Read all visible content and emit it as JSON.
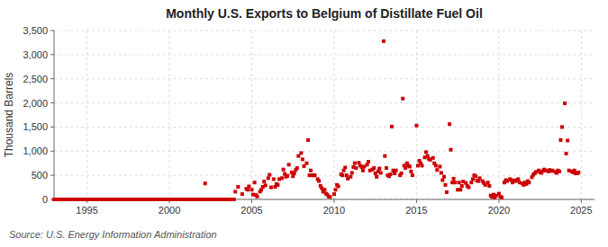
{
  "chart_data": {
    "type": "scatter",
    "title": "Monthly U.S. Exports to Belgium of Distillate Fuel Oil",
    "ylabel": "Thousand Barrels",
    "source": "Source: U.S. Energy Information Administration",
    "color": "#cc0000",
    "marker": "square",
    "grid": true,
    "xlim": [
      1993.0,
      2025.8
    ],
    "ylim": [
      0,
      3500
    ],
    "xticks": [
      1995,
      2000,
      2005,
      2010,
      2015,
      2020,
      2025
    ],
    "yticks": [
      0,
      500,
      {
        "value": 1000,
        "label": "1,000"
      },
      {
        "value": 1500,
        "label": "1,500"
      },
      {
        "value": 2000,
        "label": "2,000"
      },
      {
        "value": 2500,
        "label": "2,500"
      },
      {
        "value": 3000,
        "label": "3,000"
      },
      {
        "value": 3500,
        "label": "3,500"
      }
    ],
    "x": [
      1993.0,
      1993.08,
      1993.17,
      1993.25,
      1993.33,
      1993.42,
      1993.5,
      1993.58,
      1993.67,
      1993.75,
      1993.83,
      1993.92,
      1994.0,
      1994.08,
      1994.17,
      1994.25,
      1994.33,
      1994.42,
      1994.5,
      1994.58,
      1994.67,
      1994.75,
      1994.83,
      1994.92,
      1995.0,
      1995.08,
      1995.17,
      1995.25,
      1995.33,
      1995.42,
      1995.5,
      1995.58,
      1995.67,
      1995.75,
      1995.83,
      1995.92,
      1996.0,
      1996.08,
      1996.17,
      1996.25,
      1996.33,
      1996.42,
      1996.5,
      1996.58,
      1996.67,
      1996.75,
      1996.83,
      1996.92,
      1997.0,
      1997.08,
      1997.17,
      1997.25,
      1997.33,
      1997.42,
      1997.5,
      1997.58,
      1997.67,
      1997.75,
      1997.83,
      1997.92,
      1998.0,
      1998.08,
      1998.17,
      1998.25,
      1998.33,
      1998.42,
      1998.5,
      1998.58,
      1998.67,
      1998.75,
      1998.83,
      1998.92,
      1999.0,
      1999.08,
      1999.17,
      1999.25,
      1999.33,
      1999.42,
      1999.5,
      1999.58,
      1999.67,
      1999.75,
      1999.83,
      1999.92,
      2000.0,
      2000.08,
      2000.17,
      2000.25,
      2000.33,
      2000.42,
      2000.5,
      2000.58,
      2000.67,
      2000.75,
      2000.83,
      2000.92,
      2001.0,
      2001.08,
      2001.17,
      2001.25,
      2001.33,
      2001.42,
      2001.5,
      2001.58,
      2001.67,
      2001.75,
      2001.83,
      2001.92,
      2002.0,
      2002.08,
      2002.17,
      2002.25,
      2002.33,
      2002.42,
      2002.5,
      2002.58,
      2002.67,
      2002.75,
      2002.83,
      2002.92,
      2003.0,
      2003.08,
      2003.17,
      2003.25,
      2003.33,
      2003.42,
      2003.5,
      2003.58,
      2003.67,
      2003.75,
      2003.83,
      2003.92,
      2004.0,
      2004.17,
      2004.42,
      2004.67,
      2004.75,
      2004.83,
      2005.0,
      2005.08,
      2005.17,
      2005.25,
      2005.33,
      2005.5,
      2005.58,
      2005.67,
      2005.75,
      2005.83,
      2006.0,
      2006.08,
      2006.17,
      2006.33,
      2006.42,
      2006.5,
      2006.58,
      2006.67,
      2006.83,
      2006.92,
      2007.0,
      2007.08,
      2007.17,
      2007.25,
      2007.42,
      2007.5,
      2007.58,
      2007.67,
      2007.75,
      2007.83,
      2008.0,
      2008.08,
      2008.17,
      2008.33,
      2008.42,
      2008.5,
      2008.58,
      2008.67,
      2008.75,
      2008.83,
      2009.0,
      2009.08,
      2009.17,
      2009.25,
      2009.33,
      2009.42,
      2009.5,
      2009.58,
      2009.67,
      2009.75,
      2010.0,
      2010.08,
      2010.17,
      2010.25,
      2010.42,
      2010.5,
      2010.58,
      2010.67,
      2010.75,
      2010.83,
      2011.0,
      2011.08,
      2011.17,
      2011.25,
      2011.33,
      2011.5,
      2011.58,
      2011.67,
      2011.75,
      2011.83,
      2012.0,
      2012.08,
      2012.17,
      2012.33,
      2012.42,
      2012.5,
      2012.58,
      2012.67,
      2012.75,
      2012.83,
      2013.0,
      2013.08,
      2013.17,
      2013.25,
      2013.33,
      2013.42,
      2013.5,
      2013.58,
      2013.67,
      2013.75,
      2014.0,
      2014.08,
      2014.17,
      2014.25,
      2014.33,
      2014.42,
      2014.5,
      2014.58,
      2014.67,
      2014.75,
      2015.0,
      2015.08,
      2015.17,
      2015.25,
      2015.33,
      2015.5,
      2015.58,
      2015.67,
      2015.75,
      2015.83,
      2016.0,
      2016.08,
      2016.17,
      2016.25,
      2016.42,
      2016.5,
      2016.58,
      2016.67,
      2016.75,
      2016.83,
      2017.0,
      2017.08,
      2017.17,
      2017.25,
      2017.33,
      2017.5,
      2017.58,
      2017.67,
      2017.75,
      2017.83,
      2018.0,
      2018.08,
      2018.17,
      2018.33,
      2018.42,
      2018.5,
      2018.58,
      2018.67,
      2018.75,
      2018.83,
      2019.0,
      2019.08,
      2019.17,
      2019.33,
      2019.42,
      2019.5,
      2019.58,
      2019.67,
      2019.75,
      2019.83,
      2020.0,
      2020.08,
      2020.17,
      2020.33,
      2020.42,
      2020.5,
      2020.67,
      2020.75,
      2020.83,
      2020.92,
      2021.0,
      2021.08,
      2021.17,
      2021.25,
      2021.42,
      2021.5,
      2021.58,
      2021.67,
      2021.75,
      2021.83,
      2022.0,
      2022.08,
      2022.17,
      2022.25,
      2022.42,
      2022.5,
      2022.58,
      2022.67,
      2022.75,
      2022.83,
      2023.0,
      2023.08,
      2023.17,
      2023.25,
      2023.42,
      2023.5,
      2023.58,
      2023.67,
      2023.75,
      2023.83,
      2024.0,
      2024.08,
      2024.17,
      2024.25,
      2024.42,
      2024.5,
      2024.58,
      2024.67,
      2024.75,
      2024.83
    ],
    "values": [
      0,
      0,
      0,
      0,
      0,
      0,
      0,
      0,
      0,
      0,
      0,
      0,
      0,
      0,
      0,
      0,
      0,
      0,
      0,
      0,
      0,
      0,
      0,
      0,
      0,
      0,
      0,
      0,
      0,
      0,
      0,
      0,
      0,
      0,
      0,
      0,
      0,
      0,
      0,
      0,
      0,
      0,
      0,
      0,
      0,
      0,
      0,
      0,
      0,
      0,
      0,
      0,
      0,
      0,
      0,
      0,
      0,
      0,
      0,
      0,
      0,
      0,
      0,
      0,
      0,
      0,
      0,
      0,
      0,
      0,
      0,
      0,
      0,
      0,
      0,
      0,
      0,
      0,
      0,
      0,
      0,
      0,
      0,
      0,
      0,
      0,
      0,
      0,
      0,
      0,
      0,
      0,
      0,
      0,
      0,
      0,
      0,
      0,
      0,
      0,
      0,
      0,
      0,
      0,
      0,
      0,
      0,
      0,
      0,
      0,
      330,
      0,
      0,
      0,
      0,
      0,
      0,
      0,
      0,
      0,
      0,
      0,
      0,
      0,
      0,
      0,
      0,
      0,
      0,
      0,
      0,
      0,
      160,
      260,
      110,
      220,
      200,
      270,
      200,
      100,
      350,
      90,
      60,
      160,
      200,
      260,
      370,
      290,
      440,
      510,
      250,
      420,
      260,
      320,
      300,
      420,
      440,
      620,
      530,
      470,
      490,
      720,
      560,
      480,
      540,
      610,
      650,
      900,
      960,
      830,
      690,
      750,
      1230,
      500,
      600,
      500,
      500,
      500,
      420,
      380,
      280,
      230,
      160,
      200,
      120,
      100,
      60,
      50,
      110,
      200,
      300,
      270,
      520,
      500,
      600,
      660,
      500,
      430,
      470,
      550,
      670,
      750,
      650,
      760,
      700,
      670,
      600,
      680,
      720,
      780,
      600,
      620,
      650,
      540,
      470,
      580,
      640,
      550,
      3280,
      900,
      650,
      500,
      480,
      520,
      1510,
      600,
      540,
      600,
      500,
      540,
      2090,
      700,
      650,
      750,
      700,
      680,
      580,
      500,
      1530,
      700,
      800,
      750,
      700,
      870,
      980,
      900,
      840,
      820,
      860,
      750,
      700,
      610,
      680,
      550,
      400,
      470,
      300,
      150,
      1560,
      1030,
      350,
      430,
      350,
      200,
      350,
      200,
      280,
      370,
      340,
      280,
      250,
      350,
      420,
      500,
      480,
      390,
      380,
      440,
      380,
      340,
      300,
      350,
      280,
      80,
      50,
      100,
      40,
      80,
      120,
      60,
      40,
      350,
      400,
      380,
      420,
      400,
      350,
      390,
      380,
      400,
      420,
      350,
      330,
      300,
      350,
      320,
      380,
      350,
      460,
      510,
      540,
      570,
      600,
      560,
      550,
      590,
      620,
      600,
      580,
      610,
      590,
      600,
      570,
      550,
      600,
      580,
      1230,
      1500,
      1990,
      950,
      1220,
      600,
      580,
      560,
      600,
      540,
      540,
      560
    ]
  }
}
